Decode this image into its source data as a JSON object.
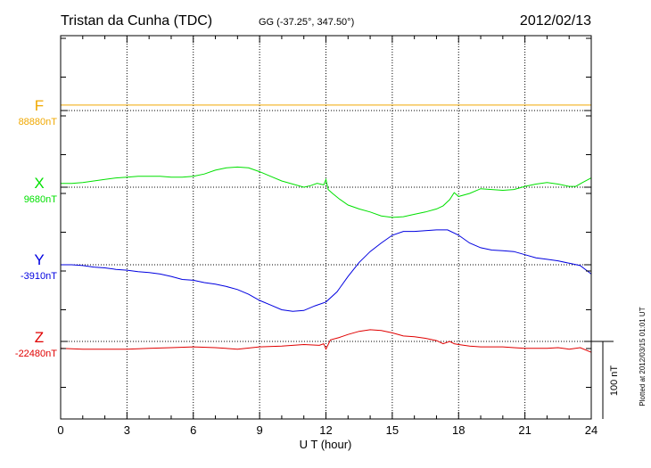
{
  "header": {
    "station": "Tristan da Cunha (TDC)",
    "coords": "GG (-37.25°, 347.50°)",
    "date": "2012/02/13"
  },
  "footer": {
    "plotted": "Plotted at 2012/03/15 01:01  UT"
  },
  "chart_data": {
    "type": "line",
    "xlabel": "U T (hour)",
    "xlim": [
      0,
      24
    ],
    "xticks": [
      "0",
      "3",
      "6",
      "9",
      "12",
      "15",
      "18",
      "21",
      "24"
    ],
    "grid": true,
    "scale_bar": {
      "label": "100 nT",
      "nT": 100
    },
    "colors": {
      "F": "#f0a800",
      "X": "#00e000",
      "Y": "#0000e0",
      "Z": "#e00000"
    },
    "series": [
      {
        "name": "F",
        "baseline_label": "88880nT",
        "baseline": 88880,
        "x": [
          0,
          24
        ],
        "values": [
          88887,
          88887
        ]
      },
      {
        "name": "X",
        "baseline_label": "9680nT",
        "baseline": 9680,
        "x": [
          0,
          0.5,
          1,
          1.5,
          2,
          2.5,
          3,
          3.5,
          4,
          4.5,
          5,
          5.5,
          6,
          6.5,
          7,
          7.5,
          8,
          8.5,
          9,
          9.5,
          10,
          10.5,
          11,
          11.3,
          11.6,
          11.9,
          12.0,
          12.1,
          12.3,
          12.6,
          13,
          13.5,
          14,
          14.5,
          15,
          15.5,
          16,
          16.5,
          17,
          17.3,
          17.6,
          17.8,
          18,
          18.5,
          19,
          19.5,
          20,
          20.5,
          21,
          21.5,
          22,
          22.5,
          23,
          23.3,
          23.6,
          24
        ],
        "values": [
          9685,
          9685,
          9686,
          9688,
          9690,
          9692,
          9693,
          9694,
          9694,
          9694,
          9693,
          9693,
          9694,
          9697,
          9702,
          9705,
          9706,
          9705,
          9700,
          9694,
          9688,
          9684,
          9680,
          9682,
          9685,
          9683,
          9690,
          9677,
          9672,
          9665,
          9657,
          9652,
          9648,
          9643,
          9641,
          9642,
          9645,
          9648,
          9652,
          9656,
          9664,
          9673,
          9668,
          9672,
          9678,
          9677,
          9676,
          9677,
          9681,
          9684,
          9686,
          9684,
          9681,
          9681,
          9686,
          9692
        ]
      },
      {
        "name": "Y",
        "baseline_label": "-3910nT",
        "baseline": -3910,
        "x": [
          0,
          0.5,
          1,
          1.5,
          2,
          2.5,
          3,
          3.5,
          4,
          4.5,
          5,
          5.5,
          6,
          6.5,
          7,
          7.5,
          8,
          8.5,
          9,
          9.5,
          10,
          10.5,
          11,
          11.5,
          12,
          12.5,
          13,
          13.5,
          14,
          14.5,
          15,
          15.5,
          16,
          16.5,
          17,
          17.5,
          18,
          18.5,
          19,
          19.5,
          20,
          20.5,
          21,
          21.5,
          22,
          22.5,
          23,
          23.5,
          24
        ],
        "values": [
          -3910,
          -3910,
          -3911,
          -3913,
          -3914,
          -3916,
          -3917,
          -3919,
          -3920,
          -3922,
          -3925,
          -3929,
          -3930,
          -3933,
          -3935,
          -3938,
          -3942,
          -3948,
          -3956,
          -3962,
          -3968,
          -3970,
          -3969,
          -3963,
          -3958,
          -3945,
          -3925,
          -3907,
          -3893,
          -3882,
          -3872,
          -3867,
          -3867,
          -3866,
          -3865,
          -3865,
          -3872,
          -3882,
          -3888,
          -3891,
          -3892,
          -3893,
          -3897,
          -3901,
          -3903,
          -3905,
          -3908,
          -3911,
          -3922
        ]
      },
      {
        "name": "Z",
        "baseline_label": "-22480nT",
        "baseline": -22480,
        "x": [
          0,
          1,
          2,
          3,
          4,
          5,
          6,
          7,
          8,
          9,
          10,
          11,
          11.7,
          11.9,
          12.0,
          12.2,
          12.6,
          13,
          13.5,
          14,
          14.5,
          15,
          15.5,
          16,
          16.5,
          17,
          17.3,
          17.6,
          17.8,
          18,
          18.5,
          19,
          19.5,
          20,
          20.5,
          21,
          21.5,
          22,
          22.5,
          23,
          23.5,
          24
        ],
        "values": [
          -22489,
          -22490,
          -22490,
          -22490,
          -22489,
          -22488,
          -22487,
          -22488,
          -22490,
          -22487,
          -22486,
          -22484,
          -22485,
          -22483,
          -22490,
          -22478,
          -22475,
          -22471,
          -22467,
          -22465,
          -22466,
          -22469,
          -22473,
          -22474,
          -22476,
          -22479,
          -22483,
          -22480,
          -22483,
          -22484,
          -22486,
          -22487,
          -22487,
          -22487,
          -22488,
          -22489,
          -22489,
          -22489,
          -22488,
          -22490,
          -22488,
          -22494
        ]
      }
    ]
  }
}
